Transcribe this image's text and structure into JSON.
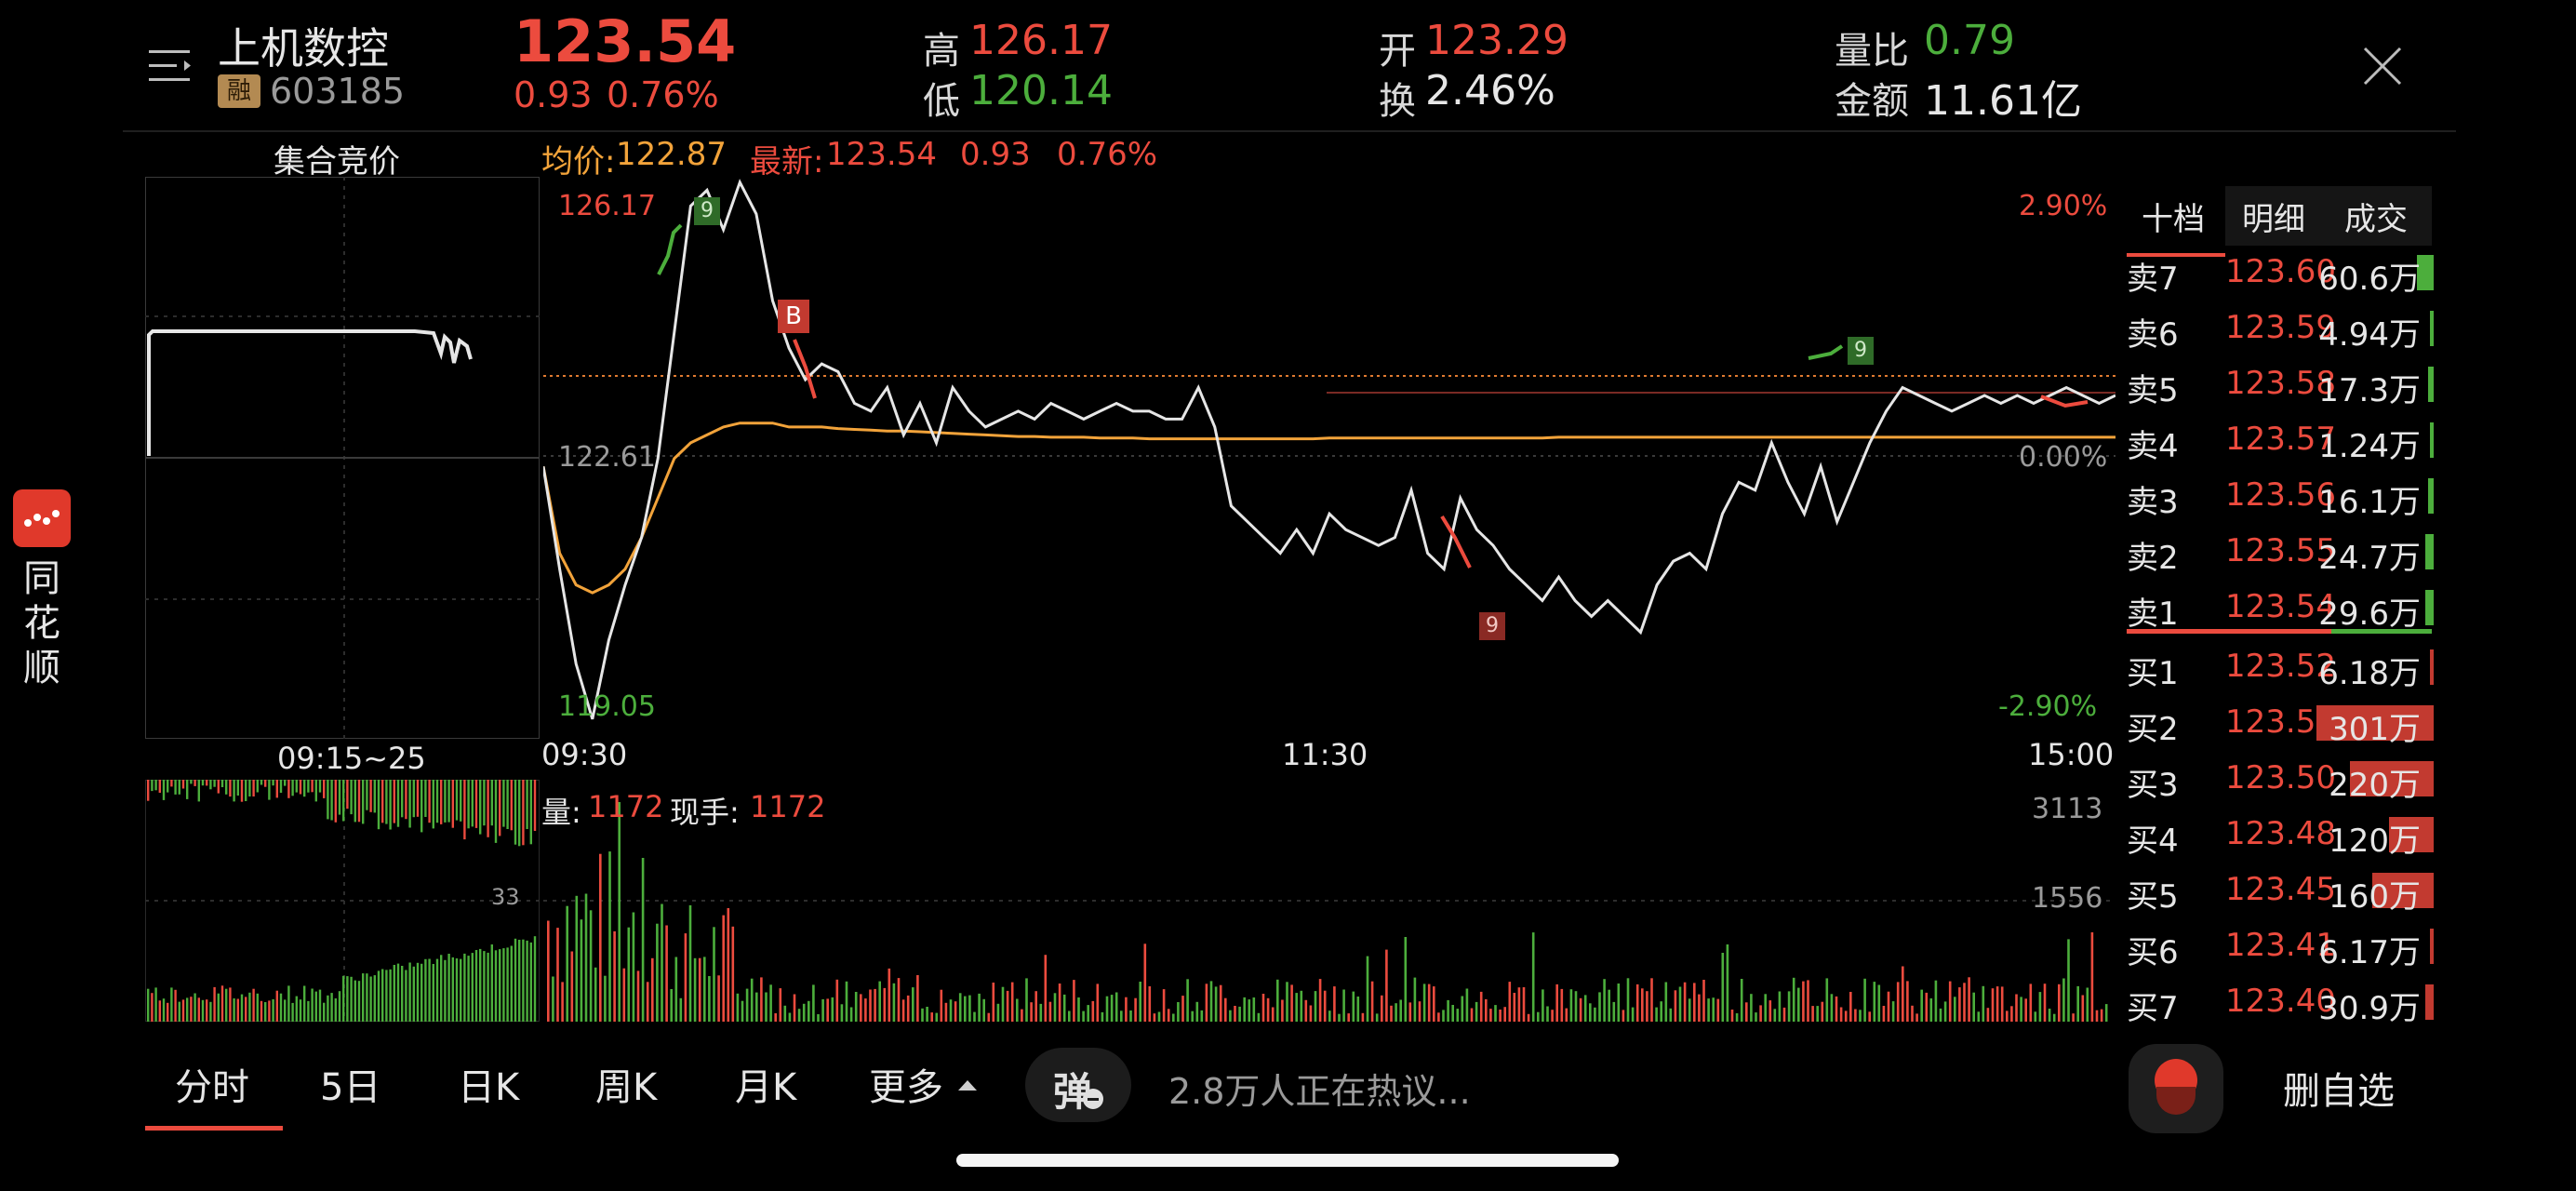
{
  "header": {
    "menu_icon": "list-menu-icon",
    "stock_name": "上机数控",
    "margin_badge": "融",
    "stock_code": "603185",
    "price": "123.54",
    "change": "0.93",
    "change_pct": "0.76%",
    "high_label": "高",
    "high": "126.17",
    "low_label": "低",
    "low": "120.14",
    "open_label": "开",
    "open": "123.29",
    "turnover_label": "换",
    "turnover": "2.46%",
    "volume_ratio_label": "量比",
    "volume_ratio": "0.79",
    "amount_label": "金额",
    "amount": "11.61亿",
    "close_icon": "close-icon"
  },
  "auction": {
    "title": "集合竞价",
    "time_label": "09:15~25",
    "volume_label": "33"
  },
  "chart_legend": {
    "avg_label": "均价:",
    "avg_value": "122.87",
    "latest_label": "最新:",
    "latest_value": "123.54",
    "change": "0.93",
    "change_pct": "0.76%"
  },
  "chart_labels": {
    "top_price": "126.17",
    "mid_price": "122.61",
    "bottom_price": "119.05",
    "top_pct": "2.90%",
    "mid_pct": "0.00%",
    "bottom_pct": "-2.90%",
    "time_start": "09:30",
    "time_mid": "11:30",
    "time_end": "15:00",
    "marker_b": "B",
    "marker_9_a": "9",
    "marker_9_b": "9",
    "marker_9_c": "9"
  },
  "chart_data": {
    "type": "line",
    "prev_close": 122.61,
    "ylim": [
      119.05,
      126.17
    ],
    "x_ticks": [
      "09:30",
      "11:30",
      "15:00"
    ],
    "series": [
      {
        "name": "最新",
        "color": "#e6e6e6",
        "values": [
          122.5,
          121.2,
          120.0,
          119.3,
          120.3,
          121.0,
          121.6,
          122.6,
          124.2,
          125.8,
          126.0,
          125.5,
          126.1,
          125.7,
          124.6,
          124.0,
          123.6,
          123.8,
          123.7,
          123.3,
          123.2,
          123.5,
          122.9,
          123.3,
          122.8,
          123.5,
          123.2,
          123.0,
          123.1,
          123.2,
          123.1,
          123.3,
          123.2,
          123.1,
          123.2,
          123.3,
          123.2,
          123.2,
          123.1,
          123.1,
          123.5,
          123.0,
          122.0,
          121.8,
          121.6,
          121.4,
          121.7,
          121.4,
          121.9,
          121.7,
          121.6,
          121.5,
          121.6,
          122.2,
          121.4,
          121.2,
          122.1,
          121.7,
          121.5,
          121.2,
          121.0,
          120.8,
          121.1,
          120.8,
          120.6,
          120.8,
          120.6,
          120.4,
          121.0,
          121.3,
          121.4,
          121.2,
          121.9,
          122.3,
          122.2,
          122.8,
          122.3,
          121.9,
          122.5,
          121.8,
          122.3,
          122.8,
          123.2,
          123.5,
          123.4,
          123.3,
          123.2,
          123.3,
          123.4,
          123.3,
          123.4,
          123.3,
          123.4,
          123.5,
          123.4,
          123.3,
          123.4
        ]
      },
      {
        "name": "均价",
        "color": "#f2a33a",
        "values": [
          122.5,
          121.4,
          121.0,
          120.9,
          121.0,
          121.2,
          121.6,
          122.1,
          122.6,
          122.8,
          122.9,
          123.0,
          123.05,
          123.05,
          123.05,
          123.0,
          123.0,
          123.0,
          122.98,
          122.97,
          122.96,
          122.95,
          122.95,
          122.94,
          122.93,
          122.92,
          122.91,
          122.9,
          122.89,
          122.88,
          122.88,
          122.87,
          122.87,
          122.87,
          122.86,
          122.86,
          122.86,
          122.85,
          122.85,
          122.85,
          122.85,
          122.85,
          122.85,
          122.85,
          122.85,
          122.85,
          122.85,
          122.85,
          122.86,
          122.86,
          122.86,
          122.86,
          122.86,
          122.86,
          122.86,
          122.86,
          122.86,
          122.86,
          122.86,
          122.86,
          122.86,
          122.86,
          122.87,
          122.87,
          122.87,
          122.87,
          122.87,
          122.87,
          122.87,
          122.87,
          122.87,
          122.87,
          122.87,
          122.87,
          122.87,
          122.87,
          122.87,
          122.87,
          122.87,
          122.87,
          122.87,
          122.87,
          122.87,
          122.87,
          122.87,
          122.87,
          122.87,
          122.87,
          122.87,
          122.87,
          122.87,
          122.87,
          122.87,
          122.87,
          122.87,
          122.87,
          122.87
        ]
      }
    ]
  },
  "volume": {
    "label": "量:",
    "value": "1172",
    "hand_label": "现手:",
    "hand_value": "1172",
    "axis_top": "3113",
    "axis_mid": "1556"
  },
  "order_book": {
    "tabs": [
      "十档",
      "明细",
      "成交"
    ],
    "asks": [
      {
        "label": "卖7",
        "price": "123.60",
        "volume": "60.6万",
        "bar": 0.06,
        "bar_color": "#4cae3c"
      },
      {
        "label": "卖6",
        "price": "123.59",
        "volume": "4.94万",
        "bar": 0.0,
        "bar_color": "#4cae3c"
      },
      {
        "label": "卖5",
        "price": "123.58",
        "volume": "17.3万",
        "bar": 0.02,
        "bar_color": "#4cae3c"
      },
      {
        "label": "卖4",
        "price": "123.57",
        "volume": "1.24万",
        "bar": 0.0,
        "bar_color": "#4cae3c"
      },
      {
        "label": "卖3",
        "price": "123.56",
        "volume": "16.1万",
        "bar": 0.02,
        "bar_color": "#4cae3c"
      },
      {
        "label": "卖2",
        "price": "123.55",
        "volume": "24.7万",
        "bar": 0.03,
        "bar_color": "#4cae3c"
      },
      {
        "label": "卖1",
        "price": "123.54",
        "volume": "29.6万",
        "bar": 0.03,
        "bar_color": "#4cae3c"
      }
    ],
    "bids": [
      {
        "label": "买1",
        "price": "123.52",
        "volume": "6.18万",
        "bar": 0.0,
        "bar_color": "#c23a30"
      },
      {
        "label": "买2",
        "price": "123.51",
        "volume": "301万",
        "bar": 0.42,
        "bar_color": "#c23a30"
      },
      {
        "label": "买3",
        "price": "123.50",
        "volume": "220万",
        "bar": 0.3,
        "bar_color": "#c23a30"
      },
      {
        "label": "买4",
        "price": "123.48",
        "volume": "120万",
        "bar": 0.16,
        "bar_color": "#c23a30"
      },
      {
        "label": "买5",
        "price": "123.45",
        "volume": "160万",
        "bar": 0.22,
        "bar_color": "#c23a30"
      },
      {
        "label": "买6",
        "price": "123.41",
        "volume": "6.17万",
        "bar": 0.0,
        "bar_color": "#c23a30"
      },
      {
        "label": "买7",
        "price": "123.40",
        "volume": "30.9万",
        "bar": 0.03,
        "bar_color": "#c23a30"
      }
    ]
  },
  "side_app": {
    "name_1": "同",
    "name_2": "花",
    "name_3": "顺",
    "icon": "tonghuashun-logo-icon"
  },
  "tabs": {
    "fenshi": "分时",
    "day5": "5日",
    "dayk": "日K",
    "weekk": "周K",
    "monthk": "月K",
    "more": "更多"
  },
  "bottom": {
    "danmu_icon": "danmu-toggle-icon",
    "danmu_label": "弹",
    "hot_discussion": "2.8万人正在热议...",
    "record_icon": "record-icon",
    "remove_watchlist": "删自选"
  }
}
